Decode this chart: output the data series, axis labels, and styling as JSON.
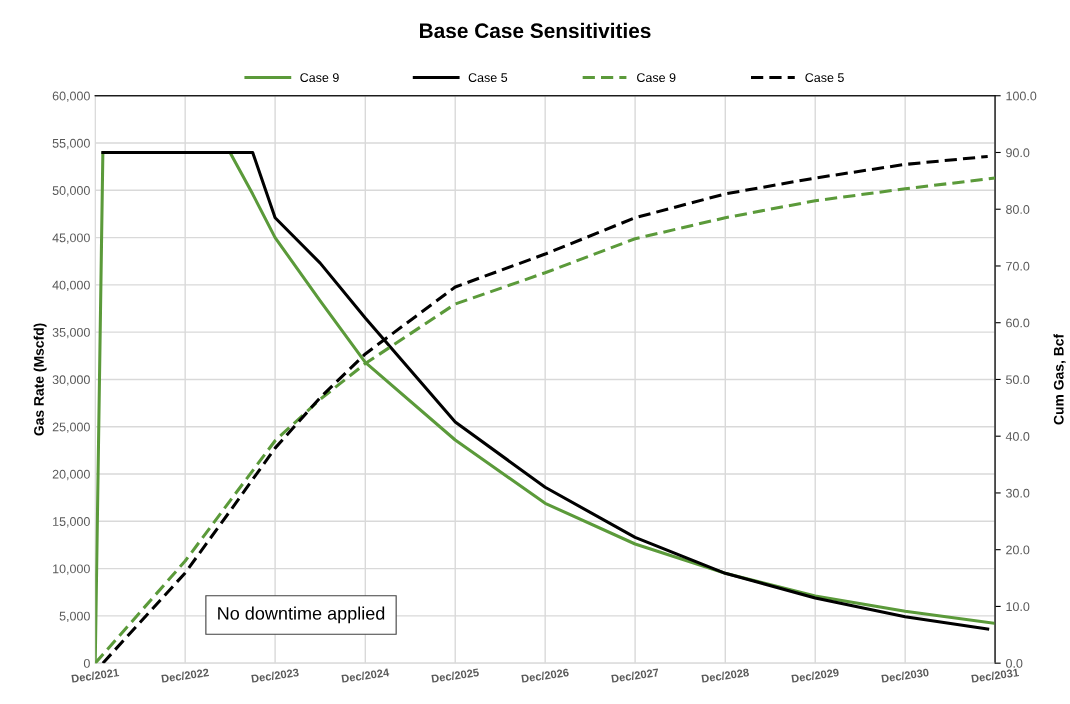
{
  "chart_data": {
    "type": "line",
    "title": "Base Case Sensitivities",
    "ylabel": "Gas Rate (Mscfd)",
    "y2label": "Cum Gas, Bcf",
    "annotations": [
      "No downtime applied"
    ],
    "series": [
      {
        "name": "Case 9",
        "color": "#5b9a3a",
        "line_style": "solid",
        "x": [
          "2021-12",
          "2022-01",
          "2023-06",
          "2023-09",
          "2023-12",
          "2024-06",
          "2024-12",
          "2025-12",
          "2026-12",
          "2027-12",
          "2028-12",
          "2029-12",
          "2030-12",
          "2031-12"
        ],
        "values": [
          0,
          54000,
          54000,
          49600,
          45000,
          38300,
          31800,
          23600,
          16900,
          12600,
          9500,
          7100,
          5500,
          4200
        ]
      },
      {
        "name": "Case 5",
        "color": "#000000",
        "line_style": "solid",
        "x": [
          "2022-01",
          "2023-09",
          "2023-12",
          "2024-06",
          "2024-12",
          "2025-12",
          "2026-12",
          "2027-12",
          "2028-12",
          "2029-12",
          "2030-12",
          "2031-11"
        ],
        "values": [
          54000,
          54000,
          47100,
          42300,
          36500,
          25500,
          18600,
          13300,
          9500,
          6900,
          4900,
          3600
        ]
      },
      {
        "name": "Case 9",
        "color": "#5b9a3a",
        "line_style": "dashed",
        "axis": "y2",
        "x": [
          "2021-12",
          "2022-12",
          "2023-06",
          "2023-12",
          "2024-06",
          "2024-12",
          "2025-12",
          "2026-12",
          "2027-12",
          "2028-12",
          "2029-12",
          "2030-12",
          "2031-12"
        ],
        "values": [
          0,
          18.0,
          28.6,
          39.2,
          46.5,
          52.8,
          63.3,
          68.8,
          74.8,
          78.5,
          81.5,
          83.6,
          85.5
        ]
      },
      {
        "name": "Case 5",
        "color": "#000000",
        "line_style": "dashed",
        "axis": "y2",
        "x": [
          "2022-01",
          "2022-12",
          "2023-06",
          "2023-12",
          "2024-06",
          "2024-12",
          "2025-12",
          "2026-12",
          "2027-12",
          "2028-12",
          "2029-12",
          "2030-12",
          "2031-11"
        ],
        "values": [
          0,
          15.9,
          26.8,
          37.9,
          46.8,
          54.5,
          66.3,
          72.1,
          78.5,
          82.7,
          85.5,
          87.9,
          89.3
        ]
      }
    ],
    "xlim": [
      "2021-12",
      "2031-12"
    ],
    "xticks": [
      {
        "value": "2021-12",
        "label": "Dec/2021"
      },
      {
        "value": "2022-12",
        "label": "Dec/2022"
      },
      {
        "value": "2023-12",
        "label": "Dec/2023"
      },
      {
        "value": "2024-12",
        "label": "Dec/2024"
      },
      {
        "value": "2025-12",
        "label": "Dec/2025"
      },
      {
        "value": "2026-12",
        "label": "Dec/2026"
      },
      {
        "value": "2027-12",
        "label": "Dec/2027"
      },
      {
        "value": "2028-12",
        "label": "Dec/2028"
      },
      {
        "value": "2029-12",
        "label": "Dec/2029"
      },
      {
        "value": "2030-12",
        "label": "Dec/2030"
      },
      {
        "value": "2031-12",
        "label": "Dec/2031"
      }
    ],
    "ylim": [
      0,
      60000
    ],
    "yticks": [
      0,
      {
        "value": 5000,
        "label": "5,000"
      },
      {
        "value": 10000,
        "label": "10,000"
      },
      {
        "value": 15000,
        "label": "15,000"
      },
      {
        "value": 20000,
        "label": "20,000"
      },
      {
        "value": 25000,
        "label": "25,000"
      },
      {
        "value": 30000,
        "label": "30,000"
      },
      {
        "value": 35000,
        "label": "35,000"
      },
      {
        "value": 40000,
        "label": "40,000"
      },
      {
        "value": 45000,
        "label": "45,000"
      },
      {
        "value": 50000,
        "label": "50,000"
      },
      {
        "value": 55000,
        "label": "55,000"
      },
      {
        "value": 60000,
        "label": "60,000"
      }
    ],
    "y2lim": [
      0,
      100
    ],
    "y2ticks": [
      {
        "value": 0,
        "label": "0.0"
      },
      {
        "value": 10,
        "label": "10.0"
      },
      {
        "value": 20,
        "label": "20.0"
      },
      {
        "value": 30,
        "label": "30.0"
      },
      {
        "value": 40,
        "label": "40.0"
      },
      {
        "value": 50,
        "label": "50.0"
      },
      {
        "value": 60,
        "label": "60.0"
      },
      {
        "value": 70,
        "label": "70.0"
      },
      {
        "value": 80,
        "label": "80.0"
      },
      {
        "value": 90,
        "label": "90.0"
      },
      {
        "value": 100,
        "label": "100.0"
      }
    ],
    "grid": true,
    "legend": "top",
    "marker": "none"
  }
}
